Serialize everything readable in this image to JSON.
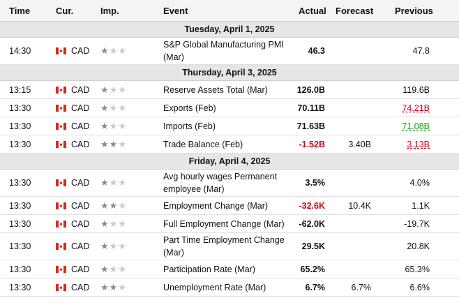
{
  "headers": {
    "time": "Time",
    "currency": "Cur.",
    "importance": "Imp.",
    "event": "Event",
    "actual": "Actual",
    "forecast": "Forecast",
    "previous": "Previous"
  },
  "colors": {
    "negative": "#d0021b",
    "previous_revised_down": "#d0021b",
    "previous_revised_up": "#1a9b1a",
    "flag_red": "#d52b1e"
  },
  "icons": {
    "flag": "canada-flag-icon",
    "importance": "star-icon"
  },
  "days": [
    {
      "label": "Tuesday, April 1, 2025",
      "events": [
        {
          "time": "14:30",
          "currency": "CAD",
          "importance": 1,
          "event": "S&P Global Manufacturing PMI (Mar)",
          "actual": "46.3",
          "forecast": "",
          "previous": "47.8",
          "actual_style": "",
          "previous_style": ""
        }
      ]
    },
    {
      "label": "Thursday, April 3, 2025",
      "events": [
        {
          "time": "13:15",
          "currency": "CAD",
          "importance": 1,
          "event": "Reserve Assets Total (Mar)",
          "actual": "126.0B",
          "forecast": "",
          "previous": "119.6B",
          "actual_style": "",
          "previous_style": ""
        },
        {
          "time": "13:30",
          "currency": "CAD",
          "importance": 1,
          "event": "Exports (Feb)",
          "actual": "70.11B",
          "forecast": "",
          "previous": "74.21B",
          "actual_style": "",
          "previous_style": "red"
        },
        {
          "time": "13:30",
          "currency": "CAD",
          "importance": 1,
          "event": "Imports (Feb)",
          "actual": "71.63B",
          "forecast": "",
          "previous": "71.08B",
          "actual_style": "",
          "previous_style": "green"
        },
        {
          "time": "13:30",
          "currency": "CAD",
          "importance": 2,
          "event": "Trade Balance (Feb)",
          "actual": "-1.52B",
          "forecast": "3.40B",
          "previous": "3.13B",
          "actual_style": "neg",
          "previous_style": "red"
        }
      ]
    },
    {
      "label": "Friday, April 4, 2025",
      "events": [
        {
          "time": "13:30",
          "currency": "CAD",
          "importance": 1,
          "event": "Avg hourly wages Permanent employee (Mar)",
          "actual": "3.5%",
          "forecast": "",
          "previous": "4.0%",
          "actual_style": "",
          "previous_style": ""
        },
        {
          "time": "13:30",
          "currency": "CAD",
          "importance": 2,
          "event": "Employment Change (Mar)",
          "actual": "-32.6K",
          "forecast": "10.4K",
          "previous": "1.1K",
          "actual_style": "neg",
          "previous_style": ""
        },
        {
          "time": "13:30",
          "currency": "CAD",
          "importance": 1,
          "event": "Full Employment Change (Mar)",
          "actual": "-62.0K",
          "forecast": "",
          "previous": "-19.7K",
          "actual_style": "",
          "previous_style": ""
        },
        {
          "time": "13:30",
          "currency": "CAD",
          "importance": 1,
          "event": "Part Time Employment Change (Mar)",
          "actual": "29.5K",
          "forecast": "",
          "previous": "20.8K",
          "actual_style": "",
          "previous_style": ""
        },
        {
          "time": "13:30",
          "currency": "CAD",
          "importance": 1,
          "event": "Participation Rate (Mar)",
          "actual": "65.2%",
          "forecast": "",
          "previous": "65.3%",
          "actual_style": "",
          "previous_style": ""
        },
        {
          "time": "13:30",
          "currency": "CAD",
          "importance": 2,
          "event": "Unemployment Rate (Mar)",
          "actual": "6.7%",
          "forecast": "6.7%",
          "previous": "6.6%",
          "actual_style": "",
          "previous_style": ""
        }
      ]
    }
  ]
}
